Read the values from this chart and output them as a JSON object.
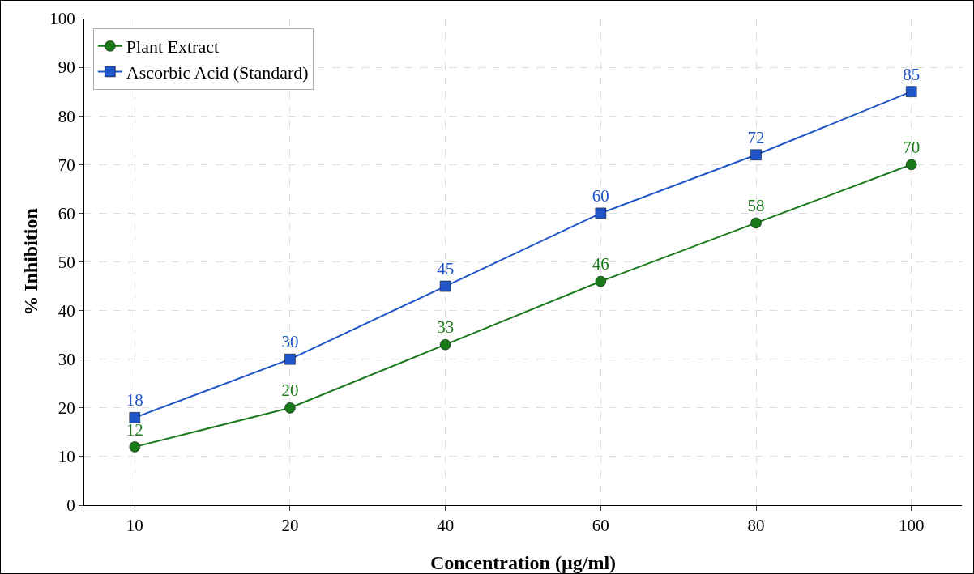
{
  "chart_data": {
    "type": "line",
    "xlabel": "Concentration (µg/ml)",
    "ylabel": "% Inhibition",
    "categories": [
      "10",
      "20",
      "40",
      "60",
      "80",
      "100"
    ],
    "series": [
      {
        "name": "Plant Extract",
        "color": "#1a7a1a",
        "marker": "circle",
        "values": [
          12,
          20,
          33,
          46,
          58,
          70
        ]
      },
      {
        "name": "Ascorbic Acid (Standard)",
        "color": "#1f55c8",
        "marker": "square",
        "values": [
          18,
          30,
          45,
          60,
          72,
          85
        ]
      }
    ],
    "ylim": [
      0,
      100
    ],
    "yticks": [
      0,
      10,
      20,
      30,
      40,
      50,
      60,
      70,
      80,
      90,
      100
    ],
    "grid": true,
    "legend": "top left",
    "data_labels": true,
    "line_style": "solid"
  }
}
